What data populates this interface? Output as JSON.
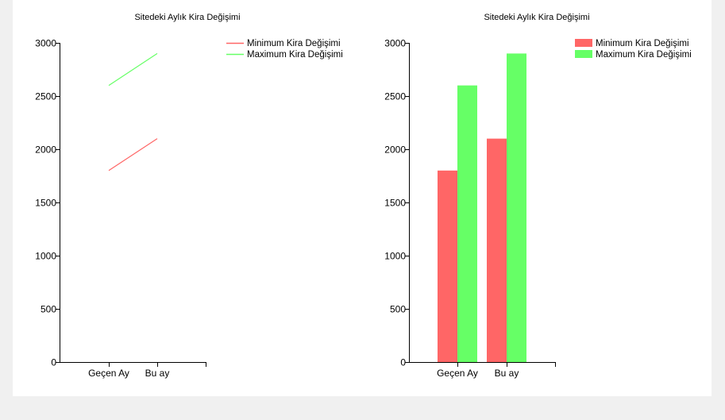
{
  "chart_data": [
    {
      "type": "line",
      "title": "Sitedeki Aylık Kira Değişimi",
      "categories": [
        "Geçen Ay",
        "Bu ay"
      ],
      "series": [
        {
          "name": "Minimum Kira Değişimi",
          "values": [
            1800,
            2100
          ],
          "color": "#ff6666"
        },
        {
          "name": "Maximum Kira Değişimi",
          "values": [
            2600,
            2900
          ],
          "color": "#66ff66"
        }
      ],
      "ylim": [
        0,
        3000
      ],
      "yticks": [
        0,
        500,
        1000,
        1500,
        2000,
        2500,
        3000
      ],
      "xlabel": "",
      "ylabel": "",
      "grid": false,
      "legend_position": "top-right"
    },
    {
      "type": "bar",
      "title": "Sitedeki Aylık Kira Değişimi",
      "categories": [
        "Geçen Ay",
        "Bu ay"
      ],
      "series": [
        {
          "name": "Minimum Kira Değişimi",
          "values": [
            1800,
            2100
          ],
          "color": "#ff6666"
        },
        {
          "name": "Maximum Kira Değişimi",
          "values": [
            2600,
            2900
          ],
          "color": "#66ff66"
        }
      ],
      "ylim": [
        0,
        3000
      ],
      "yticks": [
        0,
        500,
        1000,
        1500,
        2000,
        2500,
        3000
      ],
      "xlabel": "",
      "ylabel": "",
      "grid": false,
      "legend_position": "top-right"
    }
  ]
}
